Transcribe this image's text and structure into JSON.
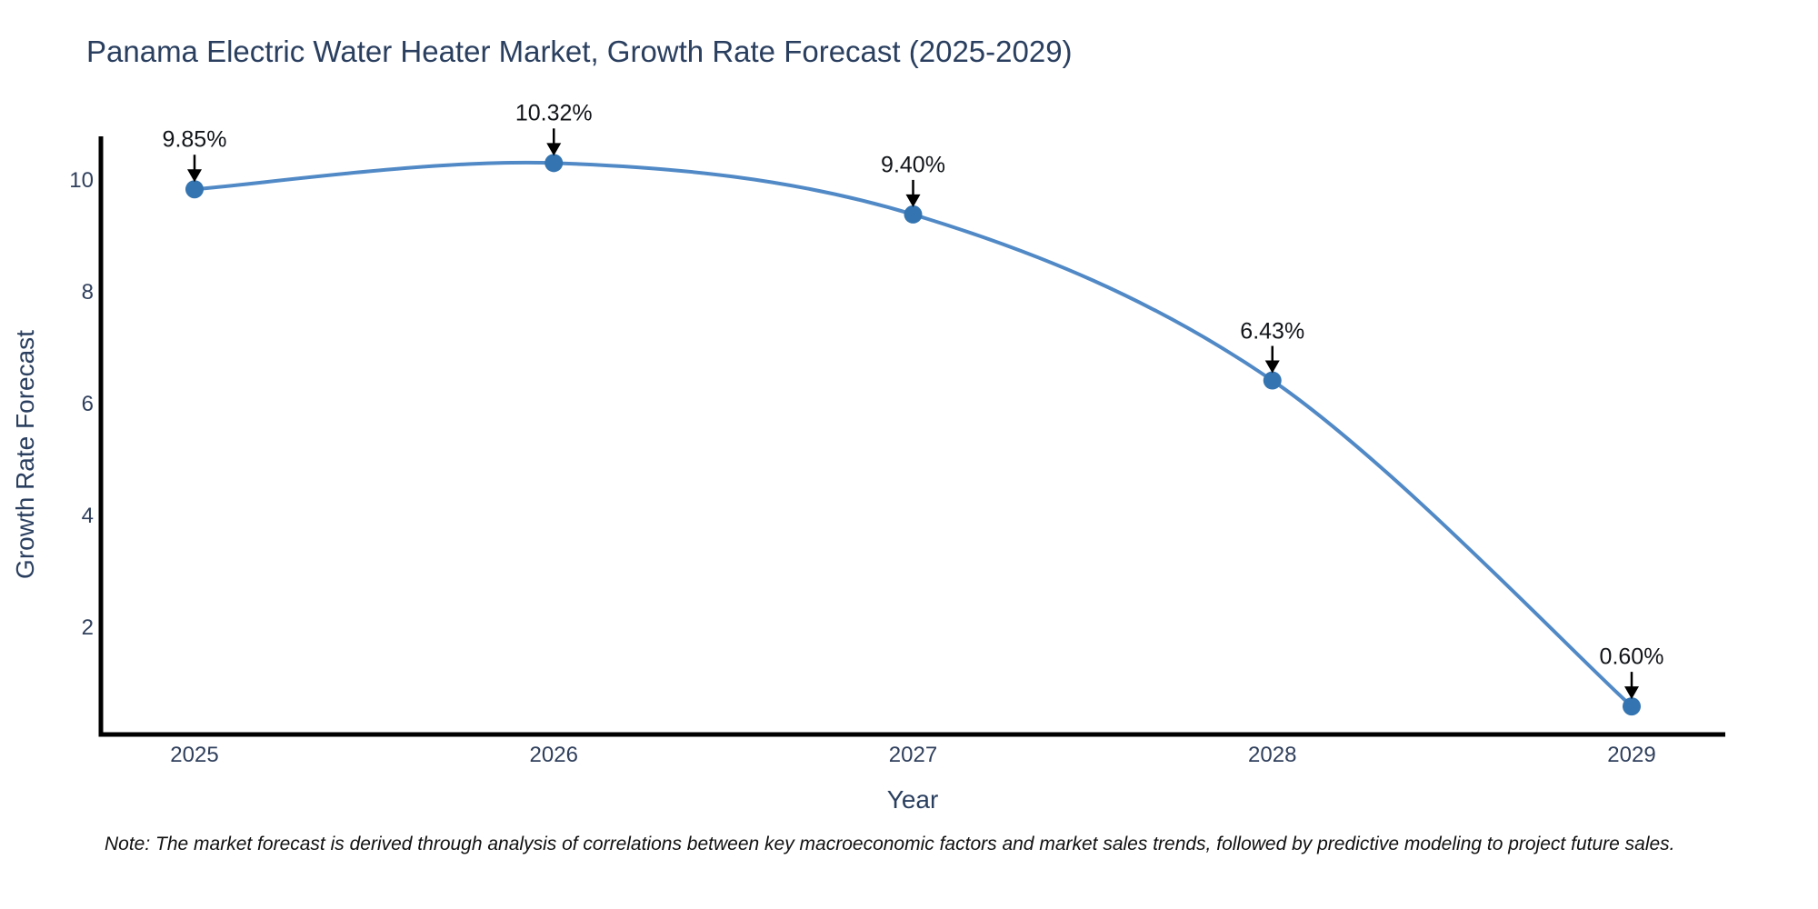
{
  "title": "Panama Electric Water Heater Market, Growth Rate Forecast (2025-2029)",
  "chart_data": {
    "type": "line",
    "line_shape": "spline",
    "x": [
      2025,
      2026,
      2027,
      2028,
      2029
    ],
    "series": [
      {
        "name": "Growth Rate Forecast",
        "values": [
          9.85,
          10.32,
          9.4,
          6.43,
          0.6
        ]
      }
    ],
    "point_labels": [
      "9.85%",
      "10.32%",
      "9.40%",
      "6.43%",
      "0.60%"
    ],
    "annotation_style": "label-with-down-arrow",
    "xlabel": "Year",
    "ylabel": "Growth Rate Forecast",
    "yticks": [
      2,
      4,
      6,
      8,
      10
    ],
    "ylim": [
      0,
      10.8
    ],
    "grid": false,
    "legend": "none",
    "colors": {
      "line": "#5089c6",
      "marker": "#3474b0",
      "arrow": "#000000",
      "axis_line": "#000000",
      "title_text": "#2a3f5f",
      "tick_text": "#2f3f5c",
      "annotation_text": "#111418"
    }
  },
  "note": "Note: The market forecast is derived through analysis of correlations between key macroeconomic factors and market sales trends, followed by predictive modeling to project future sales."
}
